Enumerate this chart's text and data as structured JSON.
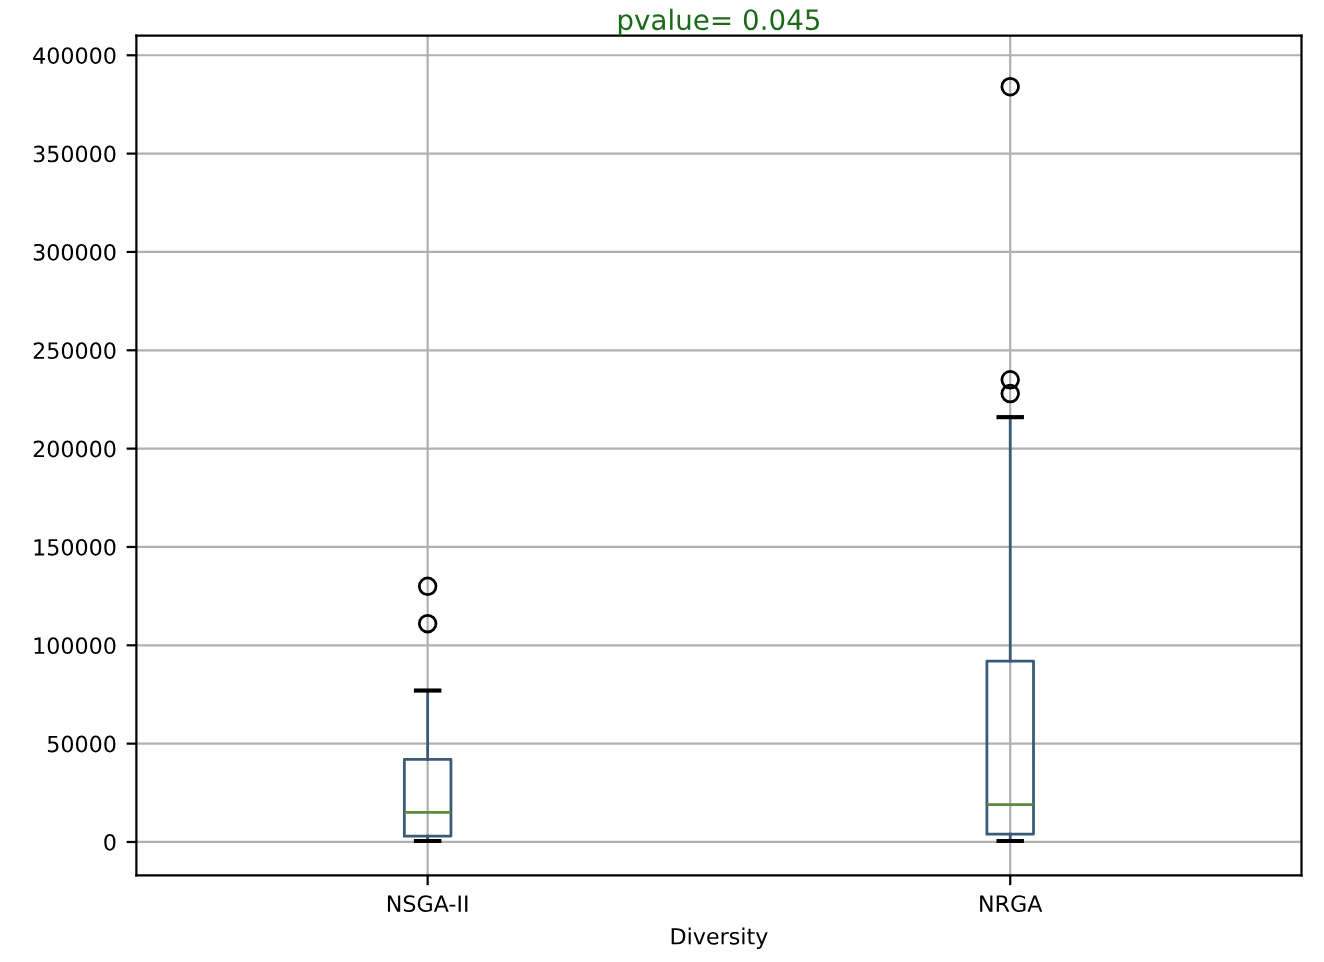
{
  "chart_data": {
    "type": "box",
    "title": "pvalue= 0.045",
    "xlabel": "Diversity",
    "categories": [
      "NSGA-II",
      "NRGA"
    ],
    "boxes": [
      {
        "low": 500,
        "q1": 3000,
        "median": 15000,
        "q3": 42000,
        "high": 77000,
        "outliers": [
          111000,
          130000
        ]
      },
      {
        "low": 500,
        "q1": 4000,
        "median": 19000,
        "q3": 92000,
        "high": 216000,
        "outliers": [
          228000,
          235000,
          384000
        ]
      }
    ],
    "color": "#3a5a78",
    "ylim": [
      -17000,
      410000
    ],
    "yticks": [
      0,
      50000,
      100000,
      150000,
      200000,
      250000,
      300000,
      350000,
      400000
    ],
    "grid": true,
    "marker": "circle"
  }
}
